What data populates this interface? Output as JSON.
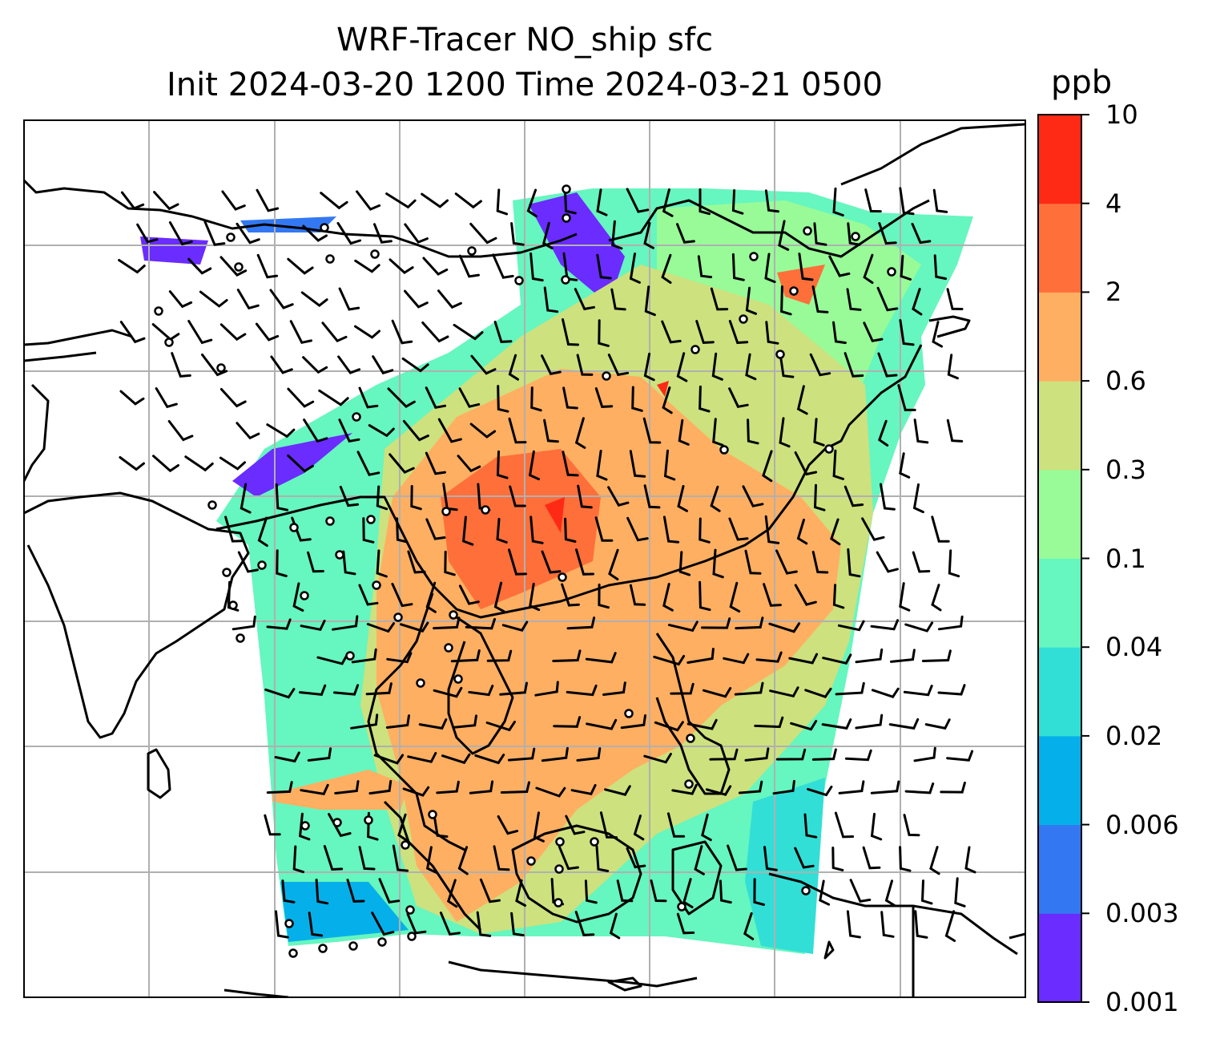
{
  "title": {
    "line1": "WRF-Tracer NO_ship sfc",
    "line2": "Init 2024-03-20 1200 Time 2024-03-21 0500"
  },
  "colorbar": {
    "units": "ppb",
    "levels": [
      "0.001",
      "0.003",
      "0.006",
      "0.02",
      "0.04",
      "0.1",
      "0.3",
      "0.6",
      "2",
      "4",
      "10"
    ],
    "colors": [
      "#6a2cff",
      "#3378f2",
      "#05b0ea",
      "#32dfd6",
      "#66f6bf",
      "#98fb98",
      "#cde17e",
      "#ffaf62",
      "#ff6f3a",
      "#ff2a15"
    ]
  },
  "map": {
    "gridlines": true,
    "coastline_color": "#000000",
    "grid_color": "#b0b0b0",
    "wind_barbs": true,
    "station_markers": true
  }
}
